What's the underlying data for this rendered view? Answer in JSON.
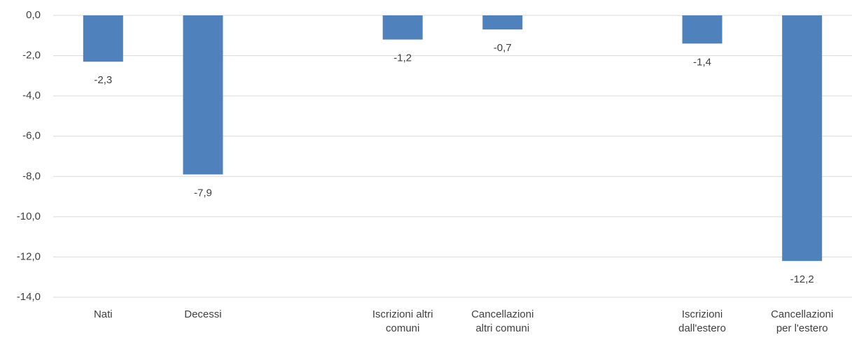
{
  "chart_data": {
    "type": "bar",
    "categories": [
      "Nati",
      "Decessi",
      null,
      "Iscrizioni altri\ncomuni",
      "Cancellazioni\naltri comuni",
      null,
      "Iscrizioni\ndall'estero",
      "Cancellazioni\nper l'estero"
    ],
    "values": [
      -2.3,
      -7.9,
      null,
      -1.2,
      -0.7,
      null,
      -1.4,
      -12.2
    ],
    "value_labels": [
      "-2,3",
      "-7,9",
      null,
      "-1,2",
      "-0,7",
      null,
      "-1,4",
      "-12,2"
    ],
    "color": "#4f81bd",
    "ylim": [
      -14,
      0
    ],
    "yticks": [
      {
        "value": 0,
        "label": "0,0"
      },
      {
        "value": -2,
        "label": "-2,0"
      },
      {
        "value": -4,
        "label": "-4,0"
      },
      {
        "value": -6,
        "label": "-6,0"
      },
      {
        "value": -8,
        "label": "-8,0"
      },
      {
        "value": -10,
        "label": "-10,0"
      },
      {
        "value": -12,
        "label": "-12,0"
      },
      {
        "value": -14,
        "label": "-14,0"
      }
    ],
    "grid": true
  }
}
